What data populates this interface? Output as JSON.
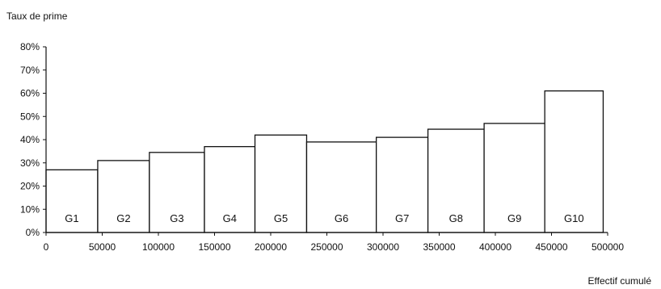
{
  "chart_data": {
    "type": "bar",
    "title": "",
    "ylabel": "Taux de prime",
    "xlabel": "Effectif cumulé",
    "ylim": [
      0,
      0.8
    ],
    "xlim": [
      0,
      500000
    ],
    "y_ticks": [
      0,
      0.1,
      0.2,
      0.3,
      0.4,
      0.5,
      0.6,
      0.7,
      0.8
    ],
    "y_tick_labels": [
      "0%",
      "10%",
      "20%",
      "30%",
      "40%",
      "50%",
      "60%",
      "70%",
      "80%"
    ],
    "x_ticks": [
      0,
      50000,
      100000,
      150000,
      200000,
      250000,
      300000,
      350000,
      400000,
      450000,
      500000
    ],
    "x_tick_labels": [
      "0",
      "50000",
      "100000",
      "150000",
      "200000",
      "250000",
      "300000",
      "350000",
      "400000",
      "450000",
      "500000"
    ],
    "grid": false,
    "legend": "none",
    "categories": [
      "G1",
      "G2",
      "G3",
      "G4",
      "G5",
      "G6",
      "G7",
      "G8",
      "G9",
      "G10"
    ],
    "x_start": [
      0,
      46000,
      92000,
      141000,
      186000,
      232000,
      294000,
      340000,
      390000,
      444000
    ],
    "x_end": [
      46000,
      92000,
      141000,
      186000,
      232000,
      294000,
      340000,
      390000,
      444000,
      496000
    ],
    "values": [
      0.27,
      0.31,
      0.345,
      0.37,
      0.42,
      0.39,
      0.41,
      0.445,
      0.47,
      0.61
    ],
    "colors": {
      "bar_fill": "#ffffff",
      "bar_stroke": "#111111",
      "axis": "#111111"
    }
  }
}
